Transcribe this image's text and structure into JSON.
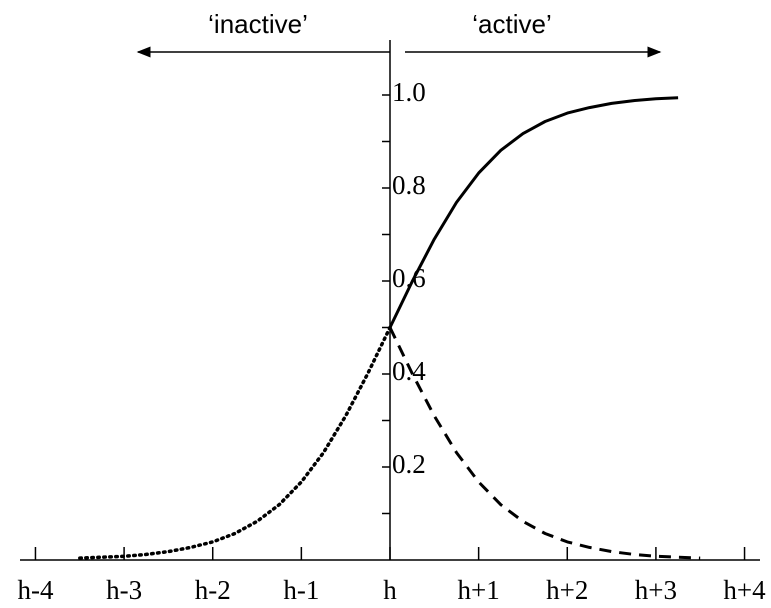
{
  "chart_data": {
    "type": "line",
    "annotations": [
      "‘inactive’",
      "‘active’"
    ],
    "xlim": [
      -4.4,
      4.4
    ],
    "xticks": [
      {
        "value": -4,
        "label": "h-4"
      },
      {
        "value": -3,
        "label": "h-3"
      },
      {
        "value": -2,
        "label": "h-2"
      },
      {
        "value": -1,
        "label": "h-1"
      },
      {
        "value": 0,
        "label": "h"
      },
      {
        "value": 1,
        "label": "h+1"
      },
      {
        "value": 2,
        "label": "h+2"
      },
      {
        "value": 3,
        "label": "h+3"
      },
      {
        "value": 4,
        "label": "h+4"
      }
    ],
    "ylim": [
      0,
      1.1
    ],
    "yticks": [
      0.2,
      0.4,
      0.6,
      0.8,
      {
        "value": 1,
        "label": "1.0"
      }
    ],
    "yminorticks": [
      0.1,
      0.3,
      0.5,
      0.7,
      0.9
    ],
    "series": [
      {
        "style": "solid",
        "color": "#000",
        "x": [
          0,
          0.25,
          0.5,
          0.75,
          1,
          1.25,
          1.5,
          1.75,
          2,
          2.25,
          2.5,
          2.75,
          3,
          3.25
        ],
        "values": [
          0.5,
          0.599,
          0.69,
          0.769,
          0.832,
          0.881,
          0.917,
          0.943,
          0.961,
          0.973,
          0.982,
          0.988,
          0.992,
          0.994
        ]
      },
      {
        "style": "dotted",
        "color": "#000",
        "x": [
          -3.5,
          -3.25,
          -3,
          -2.75,
          -2.5,
          -2.25,
          -2,
          -1.75,
          -1.5,
          -1.25,
          -1,
          -0.75,
          -0.5,
          -0.25,
          0
        ],
        "values": [
          0.004,
          0.006,
          0.008,
          0.012,
          0.018,
          0.027,
          0.039,
          0.057,
          0.083,
          0.119,
          0.168,
          0.231,
          0.31,
          0.401,
          0.5
        ]
      },
      {
        "style": "dashed",
        "color": "#000",
        "x": [
          0,
          0.25,
          0.5,
          0.75,
          1,
          1.25,
          1.5,
          1.75,
          2,
          2.25,
          2.5,
          2.75,
          3,
          3.25,
          3.5
        ],
        "values": [
          0.5,
          0.401,
          0.31,
          0.231,
          0.168,
          0.119,
          0.083,
          0.057,
          0.039,
          0.027,
          0.018,
          0.012,
          0.008,
          0.006,
          0.004
        ]
      }
    ]
  }
}
